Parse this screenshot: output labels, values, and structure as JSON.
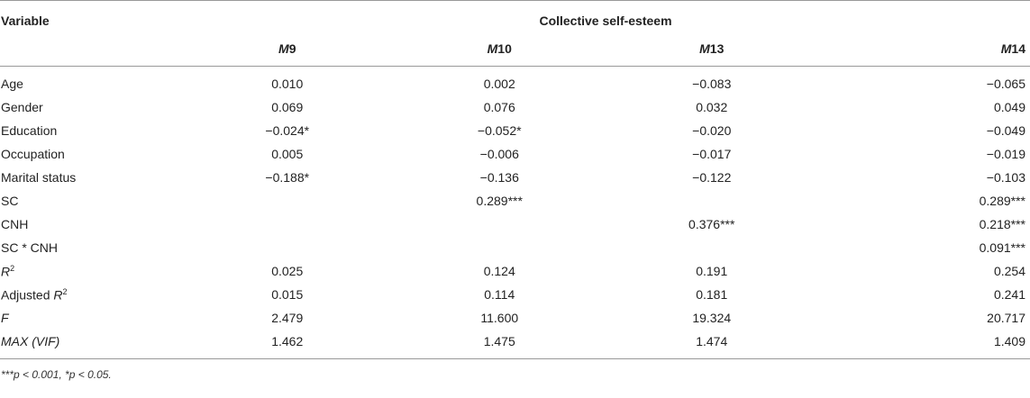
{
  "table": {
    "header_variable": "Variable",
    "header_group": "Collective self-esteem",
    "models": [
      {
        "prefix": "M",
        "num": "9"
      },
      {
        "prefix": "M",
        "num": "10"
      },
      {
        "prefix": "M",
        "num": "13"
      },
      {
        "prefix": "M",
        "num": "14"
      }
    ],
    "rows": [
      {
        "label": "Age",
        "values": [
          "0.010",
          "0.002",
          "−0.083",
          "−0.065"
        ]
      },
      {
        "label": "Gender",
        "values": [
          "0.069",
          "0.076",
          "0.032",
          "0.049"
        ]
      },
      {
        "label": "Education",
        "values": [
          "−0.024*",
          "−0.052*",
          "−0.020",
          "−0.049"
        ]
      },
      {
        "label": "Occupation",
        "values": [
          "0.005",
          "−0.006",
          "−0.017",
          "−0.019"
        ]
      },
      {
        "label": "Marital status",
        "values": [
          "−0.188*",
          "−0.136",
          "−0.122",
          "−0.103"
        ]
      },
      {
        "label": "SC",
        "values": [
          "",
          "0.289***",
          "",
          "0.289***"
        ]
      },
      {
        "label": "CNH",
        "values": [
          "",
          "",
          "0.376***",
          "0.218***"
        ]
      },
      {
        "label": "SC * CNH",
        "values": [
          "",
          "",
          "",
          "0.091***"
        ]
      },
      {
        "label": "R",
        "sup": "2",
        "italic": true,
        "values": [
          "0.025",
          "0.124",
          "0.191",
          "0.254"
        ]
      },
      {
        "label": "Adjusted ",
        "label_it": "R",
        "sup": "2",
        "values": [
          "0.015",
          "0.114",
          "0.181",
          "0.241"
        ]
      },
      {
        "label": "F",
        "italic": true,
        "values": [
          "2.479",
          "11.600",
          "19.324",
          "20.717"
        ]
      },
      {
        "label": "MAX (VIF)",
        "italic": true,
        "values": [
          "1.462",
          "1.475",
          "1.474",
          "1.409"
        ]
      }
    ],
    "footnote": "***p < 0.001, *p < 0.05."
  }
}
